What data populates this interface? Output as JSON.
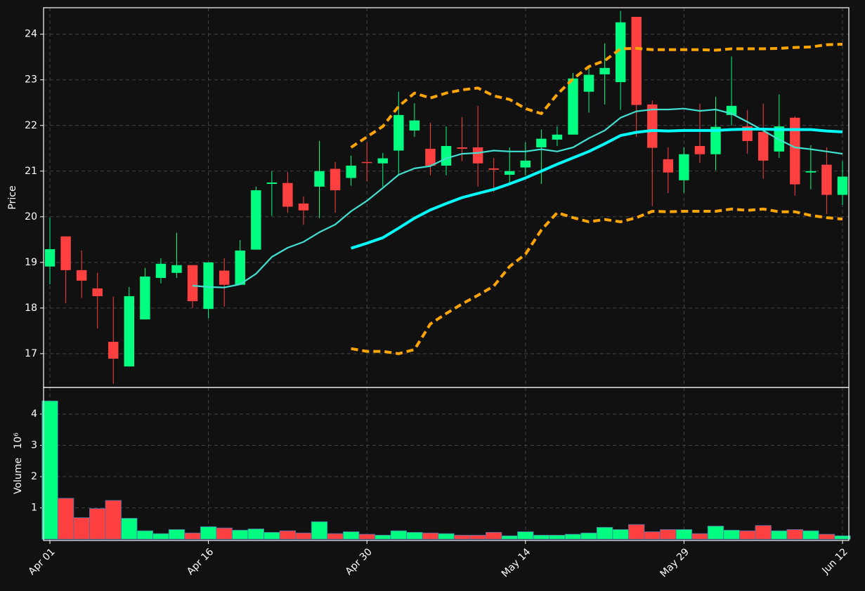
{
  "chart_data": {
    "type": "candlestick",
    "categories": [
      "Apr 01",
      null,
      null,
      null,
      null,
      null,
      null,
      null,
      null,
      null,
      "Apr 16",
      null,
      null,
      null,
      null,
      null,
      null,
      null,
      null,
      null,
      "Apr 30",
      null,
      null,
      null,
      null,
      null,
      null,
      null,
      null,
      null,
      "May 14",
      null,
      null,
      null,
      null,
      null,
      null,
      null,
      null,
      null,
      "May 29",
      null,
      null,
      null,
      null,
      null,
      null,
      null,
      null,
      null,
      "Jun 12"
    ],
    "open": [
      18.91,
      19.57,
      18.83,
      18.43,
      17.26,
      16.72,
      17.75,
      18.66,
      18.77,
      18.94,
      17.98,
      18.82,
      18.51,
      19.28,
      20.72,
      20.74,
      20.29,
      20.66,
      21.05,
      20.85,
      21.2,
      21.17,
      21.45,
      21.89,
      21.49,
      21.12,
      21.52,
      21.52,
      21.06,
      20.92,
      21.08,
      21.52,
      21.69,
      21.8,
      22.74,
      23.12,
      22.95,
      24.38,
      22.46,
      21.26,
      20.8,
      21.55,
      21.37,
      22.23,
      21.98,
      21.86,
      21.43,
      22.17,
      20.97,
      21.14,
      20.48
    ],
    "high": [
      19.98,
      19.57,
      19.26,
      18.77,
      18.25,
      18.46,
      18.88,
      19.09,
      19.65,
      18.94,
      19.0,
      19.09,
      19.49,
      20.66,
      21.0,
      20.98,
      20.45,
      21.66,
      21.2,
      21.34,
      21.63,
      21.4,
      22.74,
      22.49,
      22.06,
      21.98,
      22.18,
      22.43,
      21.29,
      21.52,
      21.63,
      21.91,
      21.98,
      23.15,
      23.29,
      23.8,
      24.51,
      24.38,
      22.55,
      21.52,
      21.52,
      22.48,
      22.63,
      23.51,
      22.34,
      22.48,
      22.68,
      22.2,
      21.57,
      21.52,
      21.22
    ],
    "low": [
      18.52,
      18.11,
      18.22,
      17.55,
      16.34,
      16.72,
      17.75,
      18.54,
      18.66,
      18.0,
      17.78,
      18.03,
      18.51,
      19.28,
      20.02,
      20.09,
      19.82,
      19.97,
      20.09,
      20.68,
      20.78,
      20.66,
      20.91,
      21.75,
      20.91,
      20.91,
      21.22,
      20.66,
      20.54,
      20.72,
      20.91,
      20.72,
      21.55,
      21.8,
      22.28,
      22.46,
      22.34,
      21.75,
      20.23,
      20.52,
      20.52,
      21.18,
      21.02,
      22.0,
      21.38,
      20.83,
      21.29,
      20.46,
      20.6,
      20.06,
      20.26
    ],
    "close": [
      19.29,
      18.83,
      18.6,
      18.26,
      16.89,
      18.26,
      18.69,
      18.97,
      18.94,
      18.15,
      19.0,
      18.51,
      19.26,
      20.58,
      20.75,
      20.22,
      20.14,
      21.0,
      20.58,
      21.12,
      21.18,
      21.28,
      22.23,
      22.11,
      21.12,
      21.55,
      21.49,
      21.17,
      21.03,
      21.0,
      21.23,
      21.71,
      21.8,
      23.03,
      23.11,
      23.26,
      24.26,
      22.45,
      21.51,
      20.97,
      21.37,
      21.37,
      21.97,
      22.43,
      21.66,
      21.23,
      21.98,
      20.71,
      21.0,
      20.48,
      20.88
    ],
    "up_color": "#00ff80",
    "down_color": "#ff4040",
    "ylabel": "Price",
    "ylim": [
      16.26,
      24.58
    ],
    "yticks": [
      17,
      18,
      19,
      20,
      21,
      22,
      23,
      24
    ],
    "grid": true,
    "lines": [
      {
        "style": "thin",
        "color": "#40e0d0",
        "values": [
          null,
          null,
          null,
          null,
          null,
          null,
          null,
          null,
          null,
          18.49,
          18.46,
          18.45,
          18.52,
          18.75,
          19.12,
          19.32,
          19.45,
          19.66,
          19.83,
          20.12,
          20.35,
          20.63,
          20.92,
          21.06,
          21.11,
          21.28,
          21.38,
          21.4,
          21.45,
          21.43,
          21.43,
          21.48,
          21.43,
          21.52,
          21.72,
          21.89,
          22.17,
          22.31,
          22.35,
          22.35,
          22.37,
          22.32,
          22.35,
          22.26,
          22.08,
          21.89,
          21.69,
          21.52,
          21.48,
          21.43,
          21.38
        ]
      },
      {
        "style": "thick",
        "color": "#00ffff",
        "values": [
          null,
          null,
          null,
          null,
          null,
          null,
          null,
          null,
          null,
          null,
          null,
          null,
          null,
          null,
          null,
          null,
          null,
          null,
          null,
          19.31,
          19.42,
          19.54,
          19.75,
          19.97,
          20.15,
          20.29,
          20.42,
          20.51,
          20.6,
          20.72,
          20.85,
          21.0,
          21.15,
          21.29,
          21.43,
          21.6,
          21.78,
          21.85,
          21.89,
          21.88,
          21.89,
          21.89,
          21.89,
          21.91,
          21.92,
          21.92,
          21.91,
          21.91,
          21.91,
          21.88,
          21.86
        ]
      },
      {
        "style": "dashed",
        "color": "#ffa500",
        "values": [
          null,
          null,
          null,
          null,
          null,
          null,
          null,
          null,
          null,
          null,
          null,
          null,
          null,
          null,
          null,
          null,
          null,
          null,
          null,
          21.52,
          21.75,
          21.98,
          22.42,
          22.71,
          22.6,
          22.71,
          22.78,
          22.82,
          22.65,
          22.57,
          22.37,
          22.26,
          22.68,
          23.02,
          23.29,
          23.42,
          23.68,
          23.69,
          23.66,
          23.66,
          23.66,
          23.66,
          23.65,
          23.68,
          23.68,
          23.68,
          23.69,
          23.71,
          23.72,
          23.77,
          23.78
        ]
      },
      {
        "style": "dashed",
        "color": "#ffa500",
        "values": [
          null,
          null,
          null,
          null,
          null,
          null,
          null,
          null,
          null,
          null,
          null,
          null,
          null,
          null,
          null,
          null,
          null,
          null,
          null,
          17.11,
          17.05,
          17.05,
          17.0,
          17.09,
          17.65,
          17.88,
          18.09,
          18.28,
          18.48,
          18.91,
          19.18,
          19.71,
          20.09,
          19.98,
          19.89,
          19.94,
          19.89,
          19.98,
          20.12,
          20.11,
          20.12,
          20.12,
          20.12,
          20.17,
          20.14,
          20.17,
          20.11,
          20.11,
          20.03,
          19.98,
          19.95
        ]
      }
    ],
    "volume": [
      4.42,
      1.31,
      0.69,
      0.98,
      1.24,
      0.67,
      0.27,
      0.18,
      0.31,
      0.2,
      0.4,
      0.36,
      0.29,
      0.33,
      0.22,
      0.27,
      0.2,
      0.56,
      0.18,
      0.24,
      0.16,
      0.13,
      0.27,
      0.22,
      0.2,
      0.18,
      0.13,
      0.13,
      0.22,
      0.11,
      0.24,
      0.13,
      0.13,
      0.16,
      0.2,
      0.38,
      0.31,
      0.47,
      0.24,
      0.31,
      0.31,
      0.18,
      0.42,
      0.29,
      0.27,
      0.44,
      0.27,
      0.31,
      0.27,
      0.16,
      0.11
    ],
    "volume_label": "Volume",
    "volume_scale": "10⁶",
    "volume_ylim": [
      -0.04,
      4.85
    ],
    "volume_yticks": [
      1,
      2,
      3,
      4
    ]
  }
}
